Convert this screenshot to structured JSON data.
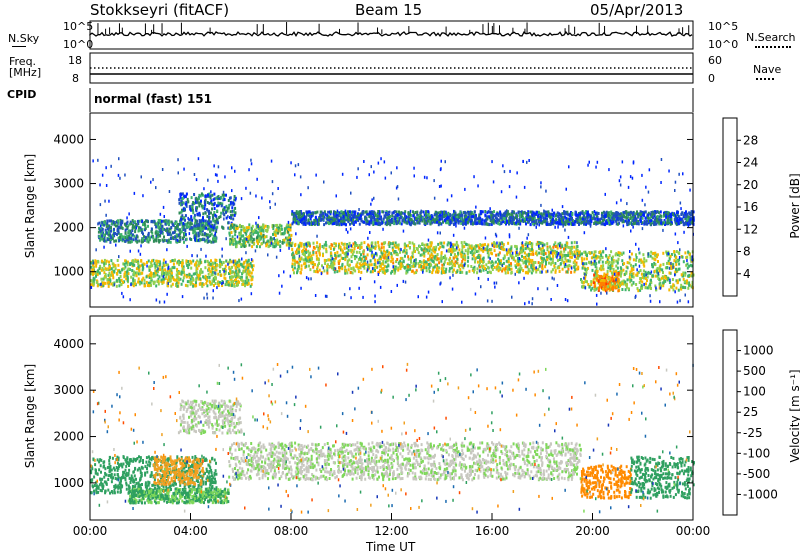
{
  "header": {
    "station": "Stokkseyri (fitACF)",
    "beam": "Beam 15",
    "date": "05/Apr/2013"
  },
  "noise_panel": {
    "left_label": "N.Sky",
    "left_ticks": [
      "10^5",
      "10^0"
    ],
    "right_ticks": [
      "10^5",
      "10^0"
    ],
    "right_label": "N.Search"
  },
  "freq_panel": {
    "left_label_line1": "Freq.",
    "left_label_line2": "[MHz]",
    "left_ticks": [
      "18",
      "8"
    ],
    "right_ticks": [
      "60",
      "0"
    ],
    "right_label": "Nave"
  },
  "cpid": {
    "label": "CPID",
    "value": "normal (fast) 151"
  },
  "colors": {
    "power_scale": [
      "#0026ff",
      "#1f4fc0",
      "#2e8b57",
      "#3db36b",
      "#8fd14f",
      "#f5b800",
      "#ff7f00",
      "#ff3b00",
      "#ff0000"
    ],
    "velocity_scale": [
      "#ff0000",
      "#ff4d00",
      "#ff8a00",
      "#f0a020",
      "#c8c8c0",
      "#c8c8c0",
      "#7fd85a",
      "#2fa060",
      "#1a6ab0",
      "#1636b8"
    ]
  },
  "chart_data": [
    {
      "type": "heatmap",
      "name": "power-panel",
      "xlabel": "",
      "ylabel": "Slant Range [km]",
      "y_ticks": [
        1000,
        2000,
        3000,
        4000
      ],
      "ylim": [
        200,
        4600
      ],
      "xlim_hours": [
        0,
        24
      ],
      "colorbar": {
        "label": "Power [dB]",
        "ticks": [
          4,
          8,
          12,
          16,
          20,
          24,
          28
        ],
        "range": [
          0,
          32
        ]
      },
      "bands": [
        {
          "start_h": 0.0,
          "end_h": 6.5,
          "ranges": [
            [
              700,
              1300
            ]
          ],
          "level": 16
        },
        {
          "start_h": 0.3,
          "end_h": 5.0,
          "ranges": [
            [
              1700,
              2200
            ]
          ],
          "level": 8
        },
        {
          "start_h": 3.5,
          "end_h": 5.8,
          "ranges": [
            [
              2000,
              2800
            ]
          ],
          "level": 6
        },
        {
          "start_h": 5.5,
          "end_h": 8.0,
          "ranges": [
            [
              1600,
              2100
            ]
          ],
          "level": 14
        },
        {
          "start_h": 8.0,
          "end_h": 19.5,
          "ranges": [
            [
              1000,
              1700
            ]
          ],
          "level": 17
        },
        {
          "start_h": 8.0,
          "end_h": 24.0,
          "ranges": [
            [
              2100,
              2400
            ]
          ],
          "level": 5
        },
        {
          "start_h": 19.5,
          "end_h": 24.0,
          "ranges": [
            [
              600,
              1500
            ]
          ],
          "level": 16
        },
        {
          "start_h": 20.0,
          "end_h": 21.0,
          "ranges": [
            [
              600,
              1000
            ]
          ],
          "level": 22
        }
      ]
    },
    {
      "type": "heatmap",
      "name": "velocity-panel",
      "xlabel": "Time UT",
      "ylabel": "Slant Range [km]",
      "x_ticks": [
        "00:00",
        "04:00",
        "08:00",
        "12:00",
        "16:00",
        "20:00",
        "00:00"
      ],
      "y_ticks": [
        1000,
        2000,
        3000,
        4000
      ],
      "ylim": [
        200,
        4600
      ],
      "xlim_hours": [
        0,
        24
      ],
      "colorbar": {
        "label": "Velocity [m s⁻¹]",
        "ticks": [
          -1000,
          -500,
          -100,
          -25,
          25,
          100,
          500,
          1000
        ]
      },
      "bands": [
        {
          "start_h": 0.0,
          "end_h": 5.0,
          "ranges": [
            [
              800,
              1600
            ]
          ],
          "velocity": 300
        },
        {
          "start_h": 2.5,
          "end_h": 4.5,
          "ranges": [
            [
              1000,
              1600
            ]
          ],
          "velocity": -200
        },
        {
          "start_h": 1.5,
          "end_h": 5.5,
          "ranges": [
            [
              600,
              900
            ]
          ],
          "velocity": 100
        },
        {
          "start_h": 3.5,
          "end_h": 6.0,
          "ranges": [
            [
              2100,
              2800
            ]
          ],
          "velocity": 0
        },
        {
          "start_h": 5.5,
          "end_h": 19.5,
          "ranges": [
            [
              1100,
              1900
            ]
          ],
          "velocity": 0
        },
        {
          "start_h": 19.5,
          "end_h": 21.5,
          "ranges": [
            [
              700,
              1400
            ]
          ],
          "velocity": -600
        },
        {
          "start_h": 21.5,
          "end_h": 24.0,
          "ranges": [
            [
              700,
              1600
            ]
          ],
          "velocity": 400
        }
      ]
    }
  ]
}
